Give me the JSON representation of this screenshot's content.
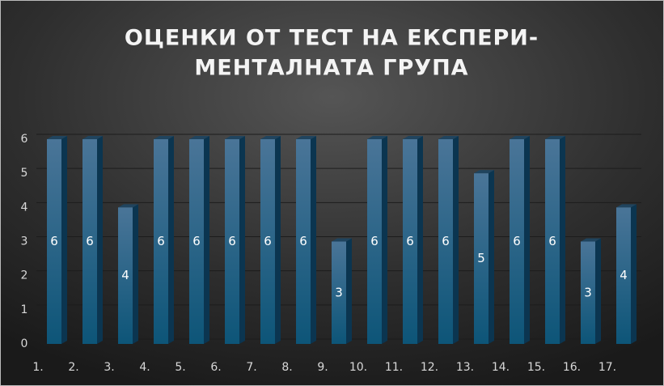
{
  "chart_data": {
    "type": "bar",
    "title": [
      "ОЦЕНКИ ОТ ТЕСТ НА ЕКСПЕРИ-",
      "МЕНТАЛНАТА ГРУПА"
    ],
    "categories": [
      "1.",
      "2.",
      "3.",
      "4.",
      "5.",
      "6.",
      "7.",
      "8.",
      "9.",
      "10.",
      "11.",
      "12.",
      "13.",
      "14.",
      "15.",
      "16.",
      "17."
    ],
    "values": [
      6,
      6,
      4,
      6,
      6,
      6,
      6,
      6,
      3,
      6,
      6,
      6,
      5,
      6,
      6,
      3,
      4
    ],
    "color": "#1f5f86",
    "ylim": [
      0,
      6
    ],
    "yticks": [
      0,
      1,
      2,
      3,
      4,
      5,
      6
    ],
    "grid": true
  }
}
